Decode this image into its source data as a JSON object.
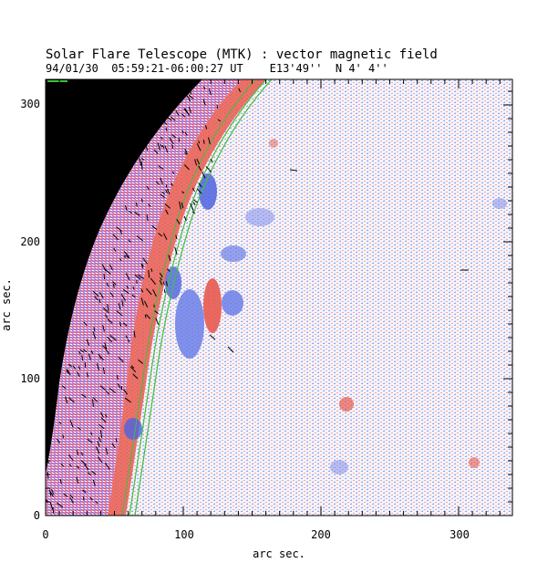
{
  "title": "Solar Flare Telescope (MTK) : vector magnetic field",
  "subtitle": "94/01/30  05:59:21-06:00:27 UT    E13'49''  N 4' 4''",
  "xaxis": {
    "label": "arc sec.",
    "ticks": [
      "0",
      "100",
      "200",
      "300"
    ]
  },
  "yaxis": {
    "label": "arc sec.",
    "ticks": [
      "0",
      "100",
      "200",
      "300"
    ]
  },
  "colors": {
    "positive": "#e85a4f",
    "negative": "#6b7fe8",
    "contour": "#3cc23c",
    "background": "#000000"
  }
}
